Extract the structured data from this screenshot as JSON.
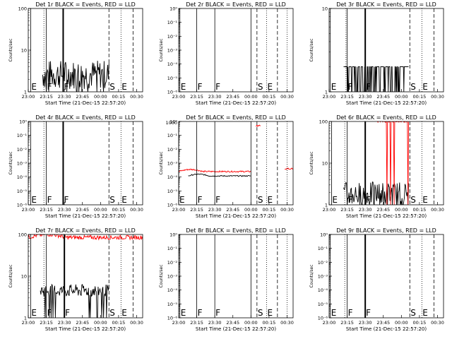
{
  "figure": {
    "xlabel": "Start Time (21-Dec-15 22:57:20)",
    "ylabel": "Counts/sec"
  },
  "chart_data": [
    {
      "type": "line",
      "title": "Det 1r BLACK = Events, RED = LLD",
      "ylabel": "Counts/sec",
      "xlabel": "Start Time (21-Dec-15 22:57:20)",
      "xlim": [
        "23:00",
        "00:35"
      ],
      "x_ticks": [
        "23:00",
        "23:15",
        "23:30",
        "23:45",
        "00:00",
        "00:15",
        "00:30"
      ],
      "yscale": "log",
      "ylim": [
        1,
        100
      ],
      "y_ticks": [
        "1",
        "10",
        "100"
      ],
      "markers": [
        {
          "label": "E",
          "time": "23:02",
          "style": "solid"
        },
        {
          "label": "",
          "time": "23:13",
          "style": "dotted"
        },
        {
          "label": "F",
          "time": "23:15",
          "style": "solid"
        },
        {
          "label": "F",
          "time": "23:29",
          "style": "thick"
        },
        {
          "label": "S",
          "time": "00:07",
          "style": "dashed"
        },
        {
          "label": "E",
          "time": "00:17",
          "style": "dotted"
        },
        {
          "label": "",
          "time": "00:27",
          "style": "dashed"
        }
      ],
      "series": [
        {
          "color": "#000000",
          "t_start": "23:12",
          "t_end": "00:07",
          "level": 2.6,
          "spread": 0.35,
          "min": 1
        }
      ]
    },
    {
      "type": "line",
      "title": "Det 2r BLACK = Events, RED = LLD",
      "ylabel": "Counts/sec",
      "xlabel": "Start Time (21-Dec-15 22:57:20)",
      "xlim": [
        "23:00",
        "00:35"
      ],
      "x_ticks": [
        "23:00",
        "23:15",
        "23:30",
        "23:45",
        "00:00",
        "00:15",
        "00:30"
      ],
      "yscale": "log",
      "ylim": [
        1e-06,
        1.0
      ],
      "y_ticks": [
        "10⁻⁶",
        "10⁻⁵",
        "10⁻⁴",
        "10⁻³",
        "10⁻²",
        "10⁻¹",
        "10⁰"
      ],
      "markers": [
        {
          "label": "E",
          "time": "23:01",
          "style": "solid"
        },
        {
          "label": "F",
          "time": "23:15",
          "style": "solid"
        },
        {
          "label": "F",
          "time": "23:30",
          "style": "solid"
        },
        {
          "label": "",
          "time": "00:00",
          "style": "solid"
        },
        {
          "label": "S",
          "time": "00:05",
          "style": "dashed"
        },
        {
          "label": "E",
          "time": "00:13",
          "style": "dotted"
        },
        {
          "label": "",
          "time": "00:22",
          "style": "dashed"
        },
        {
          "label": "",
          "time": "00:30",
          "style": "dotted"
        }
      ],
      "series": []
    },
    {
      "type": "line",
      "title": "Det 3r BLACK = Events, RED = LLD",
      "ylabel": "Counts/sec",
      "xlabel": "Start Time (21-Dec-15 22:57:20)",
      "xlim": [
        "23:00",
        "00:35"
      ],
      "x_ticks": [
        "23:00",
        "23:15",
        "23:30",
        "23:45",
        "00:00",
        "00:15",
        "00:30"
      ],
      "yscale": "log",
      "ylim": [
        1,
        10
      ],
      "y_ticks": [
        "1",
        "10"
      ],
      "markers": [
        {
          "label": "E",
          "time": "23:01",
          "style": "solid"
        },
        {
          "label": "",
          "time": "23:14",
          "style": "dotted"
        },
        {
          "label": "F",
          "time": "23:15",
          "style": "solid"
        },
        {
          "label": "F",
          "time": "23:30",
          "style": "thick"
        },
        {
          "label": "S",
          "time": "00:07",
          "style": "dashed"
        },
        {
          "label": "E",
          "time": "00:17",
          "style": "dotted"
        },
        {
          "label": "",
          "time": "00:27",
          "style": "dashed"
        }
      ],
      "series": [
        {
          "color": "#000000",
          "t_start": "23:12",
          "t_end": "00:06",
          "level": 2.0,
          "spread": 0,
          "min": 1,
          "binary": true
        }
      ]
    },
    {
      "type": "line",
      "title": "Det 4r BLACK = Events, RED = LLD",
      "ylabel": "Counts/sec",
      "xlabel": "Start Time (21-Dec-15 22:57:20)",
      "xlim": [
        "23:00",
        "00:35"
      ],
      "x_ticks": [
        "23:00",
        "23:15",
        "23:30",
        "23:45",
        "00:00",
        "00:15",
        "00:30"
      ],
      "yscale": "log",
      "ylim": [
        1e-06,
        1.0
      ],
      "y_ticks": [
        "10⁻⁶",
        "10⁻⁵",
        "10⁻⁴",
        "10⁻³",
        "10⁻²",
        "10⁻¹",
        "10⁰"
      ],
      "markers": [
        {
          "label": "E",
          "time": "23:02",
          "style": "solid"
        },
        {
          "label": "",
          "time": "23:13",
          "style": "dotted"
        },
        {
          "label": "F",
          "time": "23:15",
          "style": "solid"
        },
        {
          "label": "F",
          "time": "23:29",
          "style": "thick"
        },
        {
          "label": "S",
          "time": "00:07",
          "style": "dashed"
        },
        {
          "label": "E",
          "time": "00:17",
          "style": "dotted"
        },
        {
          "label": "",
          "time": "00:27",
          "style": "dashed"
        }
      ],
      "series": []
    },
    {
      "type": "line",
      "title": "Det 5r BLACK = Events, RED = LLD",
      "ylabel": "Counts/sec",
      "xlabel": "Start Time (21-Dec-15 22:57:20)",
      "xlim": [
        "23:00",
        "00:35"
      ],
      "x_ticks": [
        "23:00",
        "23:15",
        "23:30",
        "23:45",
        "00:00",
        "00:15",
        "00:30"
      ],
      "yscale": "log",
      "ylim": [
        1e-06,
        1.0
      ],
      "y_ticks": [
        "10⁻⁶",
        "10⁻⁵",
        "10⁻⁴",
        "10⁻³",
        "10⁻²",
        "10⁻¹",
        "10⁰"
      ],
      "y_ticks_extra": [
        "1000"
      ],
      "markers": [
        {
          "label": "E",
          "time": "23:00",
          "style": "solid"
        },
        {
          "label": "F",
          "time": "23:15",
          "style": "solid"
        },
        {
          "label": "F",
          "time": "23:30",
          "style": "solid"
        },
        {
          "label": "",
          "time": "00:00",
          "style": "solid"
        },
        {
          "label": "S",
          "time": "00:05",
          "style": "dashed"
        },
        {
          "label": "E",
          "time": "00:13",
          "style": "dotted"
        },
        {
          "label": "",
          "time": "00:22",
          "style": "dashed"
        },
        {
          "label": "",
          "time": "00:30",
          "style": "dotted"
        }
      ],
      "series": [
        {
          "color": "#ff0000",
          "t_start": "23:00",
          "t_end": "00:00",
          "level": 0.00025,
          "spread": 0.05,
          "min": 1e-06,
          "hump": 0.3
        },
        {
          "color": "#000000",
          "t_start": "23:08",
          "t_end": "00:00",
          "level": 0.00012,
          "spread": 0.04,
          "min": 1e-06,
          "hump": 0.25
        },
        {
          "color": "#ff0000",
          "t_start": "00:04",
          "t_end": "00:08",
          "level": 0.5,
          "spread": 0.05,
          "min": 1e-06
        },
        {
          "color": "#ff0000",
          "t_start": "00:28",
          "t_end": "00:35",
          "level": 0.0004,
          "spread": 0.05,
          "min": 1e-06
        }
      ]
    },
    {
      "type": "line",
      "title": "Det 6r BLACK = Events, RED = LLD",
      "ylabel": "Counts/sec",
      "xlabel": "Start Time (21-Dec-15 22:57:20)",
      "xlim": [
        "23:00",
        "00:35"
      ],
      "x_ticks": [
        "23:00",
        "23:15",
        "23:30",
        "23:45",
        "00:00",
        "00:15",
        "00:30"
      ],
      "yscale": "log",
      "ylim": [
        1,
        100
      ],
      "y_ticks": [
        "1",
        "10",
        "100"
      ],
      "markers": [
        {
          "label": "E",
          "time": "23:02",
          "style": "solid"
        },
        {
          "label": "",
          "time": "23:13",
          "style": "dotted"
        },
        {
          "label": "F",
          "time": "23:15",
          "style": "solid"
        },
        {
          "label": "F",
          "time": "23:30",
          "style": "thick"
        },
        {
          "label": "S",
          "time": "00:07",
          "style": "dashed"
        },
        {
          "label": "E",
          "time": "00:17",
          "style": "dotted"
        },
        {
          "label": "",
          "time": "00:27",
          "style": "dashed"
        }
      ],
      "series": [
        {
          "color": "#000000",
          "t_start": "23:12",
          "t_end": "00:06",
          "level": 1.8,
          "spread": 0.3,
          "min": 1
        },
        {
          "color": "#ff0000",
          "t_start": "23:40",
          "t_end": "00:06",
          "level": 100,
          "spread": 0.02,
          "min": 1
        }
      ]
    },
    {
      "type": "line",
      "title": "Det 7r BLACK = Events, RED = LLD",
      "ylabel": "Counts/sec",
      "xlabel": "Start Time (21-Dec-15 22:57:20)",
      "xlim": [
        "23:00",
        "00:35"
      ],
      "x_ticks": [
        "23:00",
        "23:15",
        "23:30",
        "23:45",
        "00:00",
        "00:15",
        "00:30"
      ],
      "yscale": "log",
      "ylim": [
        1,
        100
      ],
      "y_ticks": [
        "1",
        "10",
        "100"
      ],
      "markers": [
        {
          "label": "E",
          "time": "23:02",
          "style": "solid"
        },
        {
          "label": "",
          "time": "23:13",
          "style": "dotted"
        },
        {
          "label": "F",
          "time": "23:15",
          "style": "solid"
        },
        {
          "label": "F",
          "time": "23:30",
          "style": "thick"
        },
        {
          "label": "S",
          "time": "00:07",
          "style": "dashed"
        },
        {
          "label": "E",
          "time": "00:17",
          "style": "dotted"
        },
        {
          "label": "",
          "time": "00:27",
          "style": "dashed"
        }
      ],
      "series": [
        {
          "color": "#ff0000",
          "t_start": "23:00",
          "t_end": "00:35",
          "level": 85,
          "spread": 0.05,
          "min": 1,
          "hump": 0.15
        },
        {
          "color": "#000000",
          "t_start": "23:10",
          "t_end": "00:07",
          "level": 4.5,
          "spread": 0.15,
          "min": 1
        }
      ]
    },
    {
      "type": "line",
      "title": "Det 8r BLACK = Events, RED = LLD",
      "ylabel": "Counts/sec",
      "xlabel": "Start Time (21-Dec-15 22:57:20)",
      "xlim": [
        "23:00",
        "00:35"
      ],
      "x_ticks": [
        "23:00",
        "23:15",
        "23:30",
        "23:45",
        "00:00",
        "00:15",
        "00:30"
      ],
      "yscale": "log",
      "ylim": [
        1e-06,
        1.0
      ],
      "y_ticks": [
        "10⁻⁶",
        "10⁻⁵",
        "10⁻⁴",
        "10⁻³",
        "10⁻²",
        "10⁻¹",
        "10⁰"
      ],
      "markers": [
        {
          "label": "E",
          "time": "23:01",
          "style": "solid"
        },
        {
          "label": "F",
          "time": "23:15",
          "style": "solid"
        },
        {
          "label": "F",
          "time": "23:30",
          "style": "solid"
        },
        {
          "label": "",
          "time": "00:00",
          "style": "solid"
        },
        {
          "label": "S",
          "time": "00:05",
          "style": "dashed"
        },
        {
          "label": "E",
          "time": "00:13",
          "style": "dotted"
        },
        {
          "label": "",
          "time": "00:22",
          "style": "dashed"
        },
        {
          "label": "",
          "time": "00:30",
          "style": "dotted"
        }
      ],
      "series": []
    },
    {
      "type": "line",
      "title": "Det 9r BLACK = Events, RED = LLD",
      "ylabel": "Counts/sec",
      "xlabel": "Start Time (21-Dec-15 22:57:20)",
      "xlim": [
        "23:00",
        "00:35"
      ],
      "x_ticks": [
        "23:00",
        "23:15",
        "23:30",
        "23:45",
        "00:00",
        "00:15",
        "00:30"
      ],
      "yscale": "log",
      "ylim": [
        1e-06,
        1.0
      ],
      "y_ticks": [
        "10⁻⁶",
        "10⁻⁵",
        "10⁻⁴",
        "10⁻³",
        "10⁻²",
        "10⁻¹",
        "10⁰"
      ],
      "markers": [
        {
          "label": "E",
          "time": "23:01",
          "style": "solid"
        },
        {
          "label": "",
          "time": "23:13",
          "style": "dotted"
        },
        {
          "label": "F",
          "time": "23:15",
          "style": "solid"
        },
        {
          "label": "F",
          "time": "23:30",
          "style": "thick"
        },
        {
          "label": "S",
          "time": "00:07",
          "style": "dashed"
        },
        {
          "label": "E",
          "time": "00:17",
          "style": "dotted"
        },
        {
          "label": "",
          "time": "00:27",
          "style": "dashed"
        }
      ],
      "series": []
    }
  ]
}
